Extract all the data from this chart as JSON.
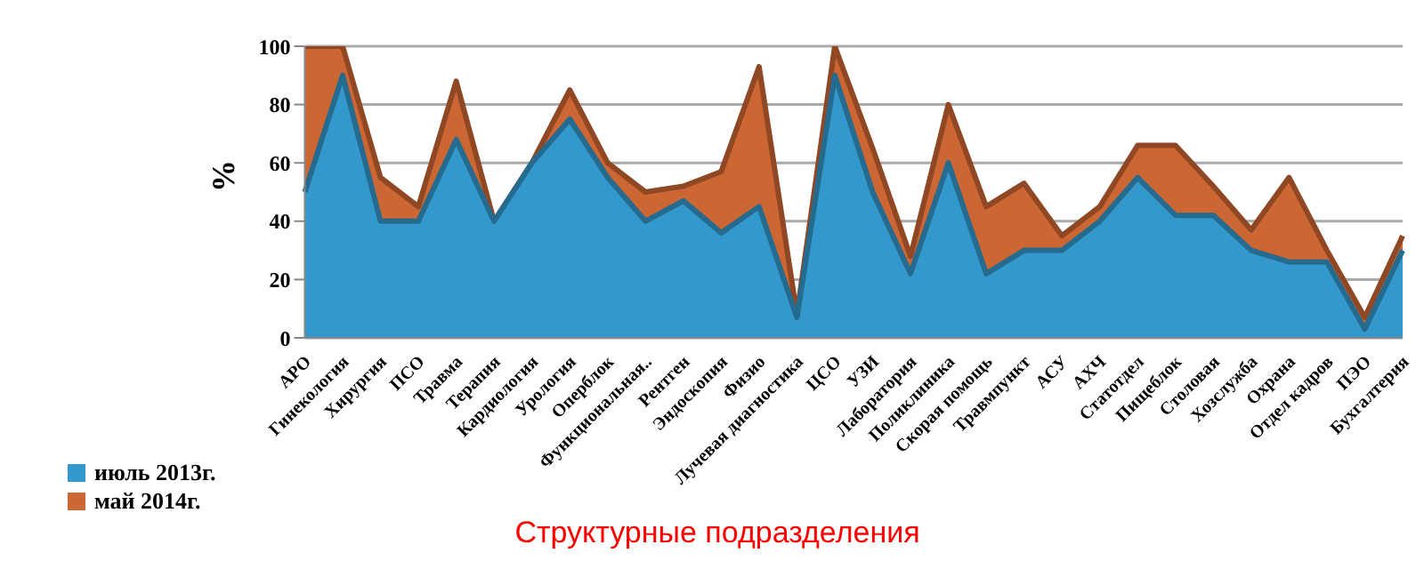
{
  "chart_data": {
    "type": "area",
    "xlabel": "Структурные подразделения",
    "ylabel": "%",
    "categories": [
      "АРО",
      "Гинекология",
      "Хирургия",
      "ПСО",
      "Травма",
      "Терапия",
      "Кардиология",
      "Урология",
      "Оперблок",
      "Функциональная..",
      "Рентген",
      "Эндоскопия",
      "Физио",
      "Лучевая диагностика",
      "ЦСО",
      "УЗИ",
      "Лаборатория",
      "Поликлиника",
      "Скорая помощь",
      "Травмпункт",
      "АСУ",
      "АХЧ",
      "Статотдел",
      "Пищеблок",
      "Столовая",
      "Хозслужба",
      "Охрана",
      "Отдел кадров",
      "ПЭО",
      "Бухгалтерия"
    ],
    "series": [
      {
        "name": "июль 2013г.",
        "color": "#3399cc",
        "values": [
          50,
          90,
          40,
          40,
          68,
          40,
          60,
          75,
          55,
          40,
          47,
          36,
          45,
          7,
          90,
          50,
          22,
          60,
          22,
          30,
          30,
          40,
          55,
          42,
          42,
          30,
          26,
          26,
          3,
          30
        ]
      },
      {
        "name": "май 2014г.",
        "color": "#cc6633",
        "values": [
          100,
          100,
          55,
          45,
          88,
          40,
          60,
          85,
          60,
          50,
          52,
          57,
          93,
          8,
          100,
          65,
          28,
          80,
          45,
          53,
          35,
          45,
          66,
          66,
          52,
          37,
          55,
          30,
          7,
          35
        ]
      }
    ],
    "ylim": [
      0,
      100
    ],
    "yticks": [
      0,
      20,
      40,
      60,
      80,
      100
    ],
    "grid": "y",
    "legend": "bottom left"
  }
}
